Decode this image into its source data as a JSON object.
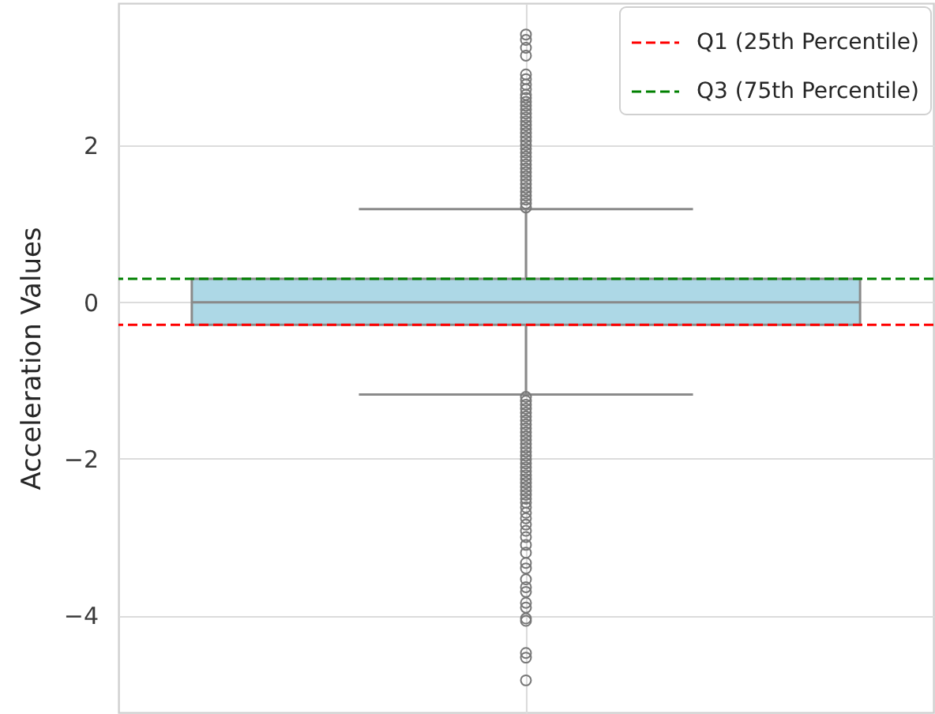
{
  "chart_data": {
    "type": "box",
    "categories": [
      null
    ],
    "ylabel": "Acceleration Values",
    "ylim": [
      -5.24,
      3.82
    ],
    "yticks": [
      -4,
      -2,
      0,
      2
    ],
    "grid": true,
    "tick_labels": "y",
    "legend": "top right",
    "series": [
      {
        "color": "#add8e6",
        "boxes": [
          {
            "low": -1.18,
            "q1": -0.29,
            "median": 0,
            "q3": 0.3,
            "high": 1.19,
            "outliers": [
              1.21,
              1.26,
              1.31,
              1.36,
              1.41,
              1.46,
              1.51,
              1.56,
              1.61,
              1.66,
              1.71,
              1.76,
              1.81,
              1.86,
              1.91,
              1.96,
              2.01,
              2.06,
              2.11,
              2.16,
              2.21,
              2.26,
              2.31,
              2.36,
              2.41,
              2.46,
              2.51,
              2.56,
              2.61,
              2.65,
              2.72,
              2.78,
              2.85,
              2.91,
              3.15,
              3.25,
              3.35,
              3.42,
              -1.21,
              -1.26,
              -1.31,
              -1.36,
              -1.41,
              -1.46,
              -1.51,
              -1.56,
              -1.61,
              -1.66,
              -1.71,
              -1.76,
              -1.81,
              -1.86,
              -1.91,
              -1.96,
              -2.01,
              -2.06,
              -2.11,
              -2.16,
              -2.21,
              -2.26,
              -2.31,
              -2.36,
              -2.41,
              -2.46,
              -2.51,
              -2.56,
              -2.62,
              -2.69,
              -2.76,
              -2.84,
              -2.92,
              -3.0,
              -3.1,
              -3.2,
              -3.33,
              -3.4,
              -3.54,
              -3.64,
              -3.7,
              -3.84,
              -3.9,
              -4.04,
              -4.07,
              -4.48,
              -4.54,
              -4.83
            ]
          }
        ]
      }
    ],
    "ref_lines": [
      {
        "axis": "y",
        "value": -0.29,
        "label": "Q1 (25th Percentile)",
        "color": "#ff0000",
        "line_style": "dashed"
      },
      {
        "axis": "y",
        "value": 0.3,
        "label": "Q3 (75th Percentile)",
        "color": "#008000",
        "line_style": "dashed"
      }
    ]
  }
}
